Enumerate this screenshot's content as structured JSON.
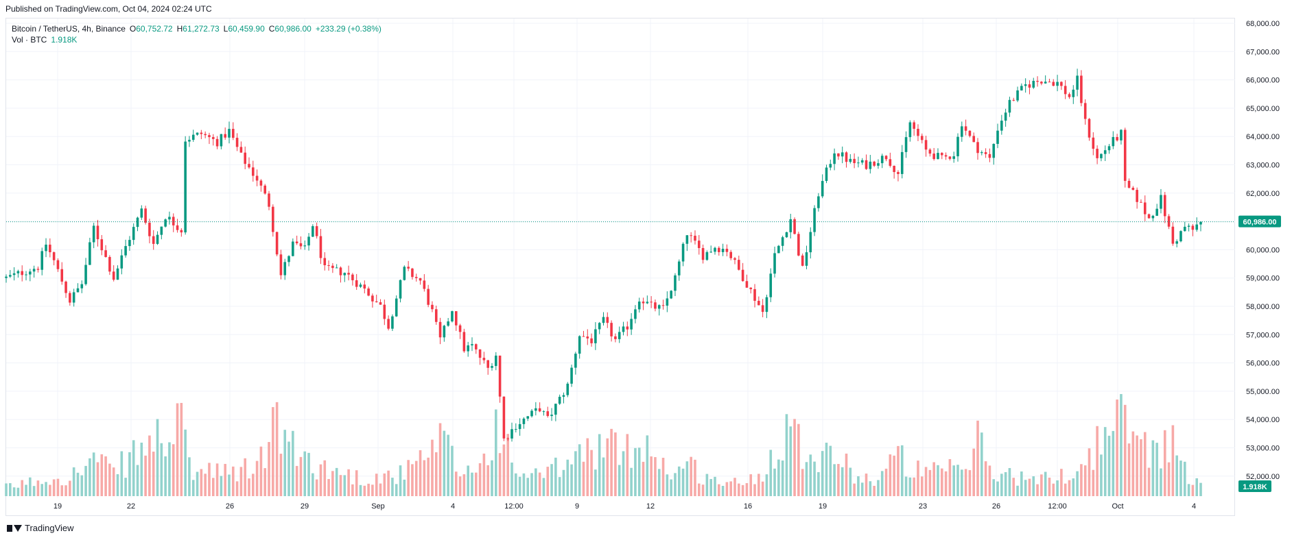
{
  "published": "Published on TradingView.com, Oct 04, 2024 02:24 UTC",
  "legend": {
    "symbol": "Bitcoin / TetherUS, 4h, Binance",
    "open_label": "O",
    "open": "60,752.72",
    "high_label": "H",
    "high": "61,272.73",
    "low_label": "L",
    "low": "60,459.90",
    "close_label": "C",
    "close": "60,986.00",
    "change": "+233.29 (+0.38%)",
    "vol_label": "Vol · BTC",
    "vol_value": "1.918K"
  },
  "brand": "TradingView",
  "colors": {
    "up": "#089981",
    "down": "#f23645",
    "up_volume": "#92d2cc",
    "down_volume": "#f7a9a7",
    "grid": "#f0f3fa",
    "last_price": "#089981"
  },
  "chart_data": {
    "type": "candlestick",
    "x_tick_labels": [
      "19",
      "22",
      "26",
      "29",
      "Sep",
      "4",
      "12:00",
      "9",
      "12",
      "16",
      "19",
      "23",
      "26",
      "12:00",
      "Oct",
      "4"
    ],
    "y_tick_labels": [
      "68,000.00",
      "67,000.00",
      "66,000.00",
      "65,000.00",
      "64,000.00",
      "63,000.00",
      "62,000.00",
      "61,000.00",
      "60,000.00",
      "59,000.00",
      "58,000.00",
      "57,000.00",
      "56,000.00",
      "55,000.00",
      "54,000.00",
      "53,000.00",
      "52,000.00"
    ],
    "ylim": [
      51800,
      68200
    ],
    "last_price_label": "60,986.00",
    "last_price": 60986,
    "volume_label": "1.918K",
    "grid": true,
    "close_path": [
      [
        0,
        59000
      ],
      [
        8,
        59400
      ],
      [
        10,
        60200
      ],
      [
        12,
        59600
      ],
      [
        16,
        58200
      ],
      [
        19,
        58800
      ],
      [
        22,
        60800
      ],
      [
        27,
        59000
      ],
      [
        30,
        60100
      ],
      [
        34,
        61400
      ],
      [
        37,
        60200
      ],
      [
        40,
        61200
      ],
      [
        44,
        60700
      ],
      [
        45,
        63900
      ],
      [
        49,
        64100
      ],
      [
        53,
        63800
      ],
      [
        56,
        64200
      ],
      [
        59,
        63300
      ],
      [
        63,
        62500
      ],
      [
        66,
        61600
      ],
      [
        69,
        59100
      ],
      [
        72,
        60200
      ],
      [
        75,
        60000
      ],
      [
        77,
        60900
      ],
      [
        80,
        59300
      ],
      [
        85,
        59200
      ],
      [
        90,
        58600
      ],
      [
        94,
        58000
      ],
      [
        96,
        57300
      ],
      [
        100,
        59300
      ],
      [
        104,
        58900
      ],
      [
        107,
        57800
      ],
      [
        109,
        56800
      ],
      [
        112,
        57900
      ],
      [
        115,
        56500
      ],
      [
        117,
        56600
      ],
      [
        121,
        55800
      ],
      [
        123,
        56300
      ],
      [
        125,
        53300
      ],
      [
        128,
        53800
      ],
      [
        134,
        54400
      ],
      [
        136,
        54000
      ],
      [
        141,
        55200
      ],
      [
        144,
        57000
      ],
      [
        147,
        56800
      ],
      [
        150,
        57500
      ],
      [
        153,
        56800
      ],
      [
        156,
        57300
      ],
      [
        159,
        58300
      ],
      [
        162,
        58000
      ],
      [
        165,
        57900
      ],
      [
        168,
        59000
      ],
      [
        171,
        60600
      ],
      [
        175,
        59800
      ],
      [
        178,
        60100
      ],
      [
        181,
        60000
      ],
      [
        186,
        58800
      ],
      [
        190,
        57800
      ],
      [
        193,
        59800
      ],
      [
        197,
        61100
      ],
      [
        200,
        59300
      ],
      [
        204,
        62000
      ],
      [
        208,
        63500
      ],
      [
        212,
        63100
      ],
      [
        216,
        63000
      ],
      [
        221,
        63300
      ],
      [
        224,
        62700
      ],
      [
        227,
        64500
      ],
      [
        231,
        63500
      ],
      [
        235,
        63200
      ],
      [
        238,
        63400
      ],
      [
        240,
        64500
      ],
      [
        243,
        63700
      ],
      [
        247,
        63200
      ],
      [
        249,
        64300
      ],
      [
        252,
        65200
      ],
      [
        256,
        65800
      ],
      [
        260,
        66000
      ],
      [
        264,
        65900
      ],
      [
        267,
        65400
      ],
      [
        269,
        66000
      ],
      [
        271,
        64500
      ],
      [
        274,
        63200
      ],
      [
        277,
        63700
      ],
      [
        280,
        64100
      ],
      [
        281,
        62300
      ],
      [
        284,
        61800
      ],
      [
        287,
        61100
      ],
      [
        290,
        61800
      ],
      [
        293,
        60200
      ],
      [
        296,
        60800
      ],
      [
        298,
        60700
      ],
      [
        300,
        61000
      ]
    ],
    "volume_path": [
      [
        0,
        0.35
      ],
      [
        10,
        0.7
      ],
      [
        18,
        0.9
      ],
      [
        22,
        1.5
      ],
      [
        27,
        0.9
      ],
      [
        30,
        1.4
      ],
      [
        40,
        2.5
      ],
      [
        44,
        2.6
      ],
      [
        47,
        1.0
      ],
      [
        56,
        0.9
      ],
      [
        63,
        1.2
      ],
      [
        66,
        2.2
      ],
      [
        68,
        3.0
      ],
      [
        72,
        1.8
      ],
      [
        80,
        1.1
      ],
      [
        90,
        0.7
      ],
      [
        100,
        0.9
      ],
      [
        106,
        1.6
      ],
      [
        110,
        2.2
      ],
      [
        114,
        0.9
      ],
      [
        120,
        1.4
      ],
      [
        124,
        3.2
      ],
      [
        127,
        1.0
      ],
      [
        135,
        0.8
      ],
      [
        142,
        1.4
      ],
      [
        148,
        2.0
      ],
      [
        156,
        1.8
      ],
      [
        160,
        2.4
      ],
      [
        166,
        1.0
      ],
      [
        172,
        1.2
      ],
      [
        176,
        0.7
      ],
      [
        184,
        0.5
      ],
      [
        190,
        0.9
      ],
      [
        196,
        3.1
      ],
      [
        200,
        2.0
      ],
      [
        204,
        1.7
      ],
      [
        208,
        1.8
      ],
      [
        212,
        1.0
      ],
      [
        218,
        0.6
      ],
      [
        224,
        1.6
      ],
      [
        230,
        0.9
      ],
      [
        236,
        1.0
      ],
      [
        242,
        1.2
      ],
      [
        244,
        2.3
      ],
      [
        248,
        0.8
      ],
      [
        252,
        0.9
      ],
      [
        258,
        0.6
      ],
      [
        264,
        0.8
      ],
      [
        268,
        0.9
      ],
      [
        272,
        1.6
      ],
      [
        276,
        2.6
      ],
      [
        280,
        3.0
      ],
      [
        284,
        2.4
      ],
      [
        288,
        1.8
      ],
      [
        292,
        2.4
      ],
      [
        296,
        1.0
      ],
      [
        300,
        0.7
      ]
    ]
  }
}
